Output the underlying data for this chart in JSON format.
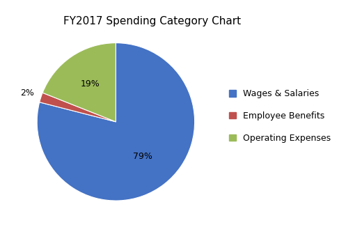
{
  "title": "FY2017 Spending Category Chart",
  "labels": [
    "Wages & Salaries",
    "Employee Benefits",
    "Operating Expenses"
  ],
  "values": [
    79,
    2,
    19
  ],
  "colors": [
    "#4472C4",
    "#C0504D",
    "#9BBB59"
  ],
  "pct_labels": [
    "79%",
    "2%",
    "19%"
  ],
  "startangle": 90,
  "title_fontsize": 11,
  "legend_fontsize": 9,
  "pct_fontsize": 9,
  "background_color": "#FFFFFF"
}
